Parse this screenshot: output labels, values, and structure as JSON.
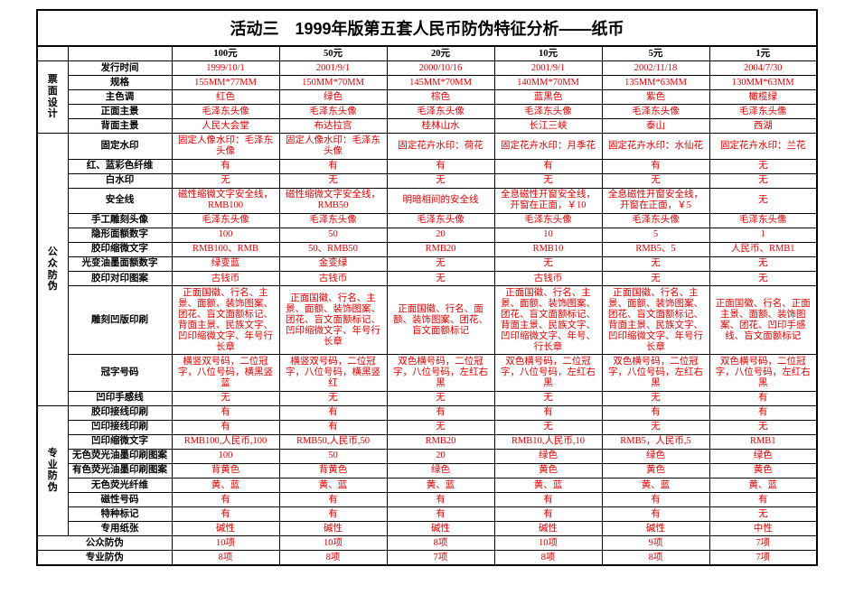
{
  "title": "活动三　1999年版第五套人民币防伪特征分析——纸币",
  "headers": [
    "100元",
    "50元",
    "20元",
    "10元",
    "5元",
    "1元"
  ],
  "sections": {
    "design": {
      "label": "票面设计",
      "rows": [
        {
          "label": "发行时间",
          "cells": [
            "1999/10/1",
            "2001/9/1",
            "2000/10/16",
            "2001/9/1",
            "2002/11/18",
            "2004/7/30"
          ],
          "color": "red"
        },
        {
          "label": "规格",
          "cells": [
            "155MM*77MM",
            "150MM*70MM",
            "145MM*70MM",
            "140MM*70MM",
            "135MM*63MM",
            "130MM*63MM"
          ],
          "color": "red"
        },
        {
          "label": "主色调",
          "cells": [
            "红色",
            "绿色",
            "棕色",
            "蓝黑色",
            "紫色",
            "橄榄绿"
          ],
          "color": "red"
        },
        {
          "label": "正面主景",
          "cells": [
            "毛泽东头像",
            "毛泽东头像",
            "毛泽东头像",
            "毛泽东头像",
            "毛泽东头像",
            "毛泽东头像"
          ],
          "color": "red"
        },
        {
          "label": "背面主景",
          "cells": [
            "人民大会堂",
            "布达拉宫",
            "桂林山水",
            "长江三峡",
            "泰山",
            "西湖"
          ],
          "color": "red"
        }
      ]
    },
    "public": {
      "label": "公众防伪",
      "rows": [
        {
          "label": "固定水印",
          "cells": [
            "固定人像水印：毛泽东头像",
            "固定人像水印：毛泽东头像",
            "固定花卉水印：荷花",
            "固定花卉水印：月季花",
            "固定花卉水印：水仙花",
            "固定花卉水印：兰花"
          ],
          "color": "red"
        },
        {
          "label": "红、蓝彩色纤维",
          "cells": [
            "有",
            "有",
            "有",
            "有",
            "有",
            "无"
          ],
          "color": "red"
        },
        {
          "label": "白水印",
          "cells": [
            "无",
            "无",
            "无",
            "无",
            "无",
            "无"
          ],
          "color": "red"
        },
        {
          "label": "安全线",
          "cells": [
            "磁性缩微文字安全线，RMB100",
            "磁性缩微文字安全线，RMB50",
            "明暗相间的安全线",
            "全息磁性开窗安全线，开窗在正面，￥10",
            "全息磁性开窗安全线，开窗在正面，￥5",
            "无"
          ],
          "color": "red"
        },
        {
          "label": "手工雕刻头像",
          "cells": [
            "毛泽东头像",
            "毛泽东头像",
            "毛泽东头像",
            "毛泽东头像",
            "毛泽东头像",
            "毛泽东头像"
          ],
          "color": "red"
        },
        {
          "label": "隐形面额数字",
          "cells": [
            "100",
            "50",
            "20",
            "10",
            "5",
            "1"
          ],
          "color": "red"
        },
        {
          "label": "胶印缩微文字",
          "cells": [
            "RMB100、RMB",
            "50、RMB50",
            "RMB20",
            "RMB10",
            "RMB5、5",
            "人民币、RMB1"
          ],
          "color": "red"
        },
        {
          "label": "光变油墨面额数字",
          "cells": [
            "绿变蓝",
            "金变绿",
            "无",
            "无",
            "无",
            "无"
          ],
          "color": "red"
        },
        {
          "label": "胶印对印图案",
          "cells": [
            "古钱币",
            "古钱币",
            "无",
            "古钱币",
            "无",
            "无"
          ],
          "color": "red"
        },
        {
          "label": "雕刻凹版印刷",
          "cells": [
            "正面国徽、行名、主景、面额、装饰图案、团花、盲文面额标记、背面主景、民族文字、凹印缩微文字、年号行长章",
            "正面国徽、行名、主景、面额、装饰图案、团花、盲文面额标记、凹印缩微文字、年号行长章",
            "正面国徽、行名、面额、装饰图案、团花、盲文面额标记",
            "正面国徽、行名、主景、面额、装饰图案、团花、盲文面额标记、背面主景、民族文字、凹印缩微文字、年号、行长章",
            "正面国徽、行名、主景、面额、装饰图案、团花、盲文面额标记、背面主景、民族文字、凹印缩微文字、年号行长章",
            "正面国徽、行名、正面主景、面额、装饰图案、团花、凹印手感线、盲文面额标记"
          ],
          "color": "red"
        },
        {
          "label": "冠字号码",
          "cells": [
            "横竖双号码，二位冠字，八位号码，横黑竖蓝",
            "横竖双号码，二位冠字，八位号码，横黑竖红",
            "双色横号码，二位冠字，八位号码，左红右黑",
            "双色横号码，二位冠字，八位号码，左红右黑",
            "双色横号码，二位冠字，八位号码，左红右黑",
            "双色横号码，二位冠字，八位号码，左红右黑"
          ],
          "color": "red"
        },
        {
          "label": "凹印手感线",
          "cells": [
            "无",
            "无",
            "无",
            "无",
            "无",
            "有"
          ],
          "color": "red"
        }
      ]
    },
    "pro": {
      "label": "专业防伪",
      "rows": [
        {
          "label": "胶印接线印刷",
          "cells": [
            "有",
            "有",
            "有",
            "有",
            "有",
            "有"
          ],
          "color": "red"
        },
        {
          "label": "凹印接线印刷",
          "cells": [
            "有",
            "有",
            "无",
            "无",
            "无",
            "无"
          ],
          "color": "red"
        },
        {
          "label": "凹印缩微文字",
          "cells": [
            "RMB100,人民币,100",
            "RMB50,人民币,50",
            "RMB20",
            "RMB10,人民币,10",
            "RMB5，人民币,5",
            "RMB1"
          ],
          "color": "red"
        },
        {
          "label": "无色荧光油墨印刷图案",
          "cells": [
            "100",
            "50",
            "20",
            "绿色",
            "绿色",
            "绿色"
          ],
          "color": "red"
        },
        {
          "label": "有色荧光油墨印刷图案",
          "cells": [
            "背黄色",
            "背黄色",
            "绿色",
            "黄色",
            "黄色",
            "黄色"
          ],
          "color": "red"
        },
        {
          "label": "无色荧光纤维",
          "cells": [
            "黄、蓝",
            "黄、蓝",
            "黄、蓝",
            "黄、蓝",
            "黄、蓝",
            "黄、蓝"
          ],
          "color": "red"
        },
        {
          "label": "磁性号码",
          "cells": [
            "有",
            "有",
            "有",
            "有",
            "有",
            "有"
          ],
          "color": "red"
        },
        {
          "label": "特种标记",
          "cells": [
            "有",
            "有",
            "有",
            "有",
            "有",
            "无"
          ],
          "color": "red"
        },
        {
          "label": "专用纸张",
          "cells": [
            "碱性",
            "碱性",
            "碱性",
            "碱性",
            "碱性",
            "中性"
          ],
          "color": "red"
        }
      ]
    }
  },
  "summary": [
    {
      "label": "公众防伪",
      "cells": [
        "10项",
        "10项",
        "8项",
        "10项",
        "9项",
        "7项"
      ],
      "color": "red"
    },
    {
      "label": "专业防伪",
      "cells": [
        "8项",
        "8项",
        "7项",
        "8项",
        "8项",
        "7项"
      ],
      "color": "red"
    }
  ],
  "colors": {
    "red": "#e00000",
    "border": "#000000",
    "bg": "#ffffff"
  }
}
